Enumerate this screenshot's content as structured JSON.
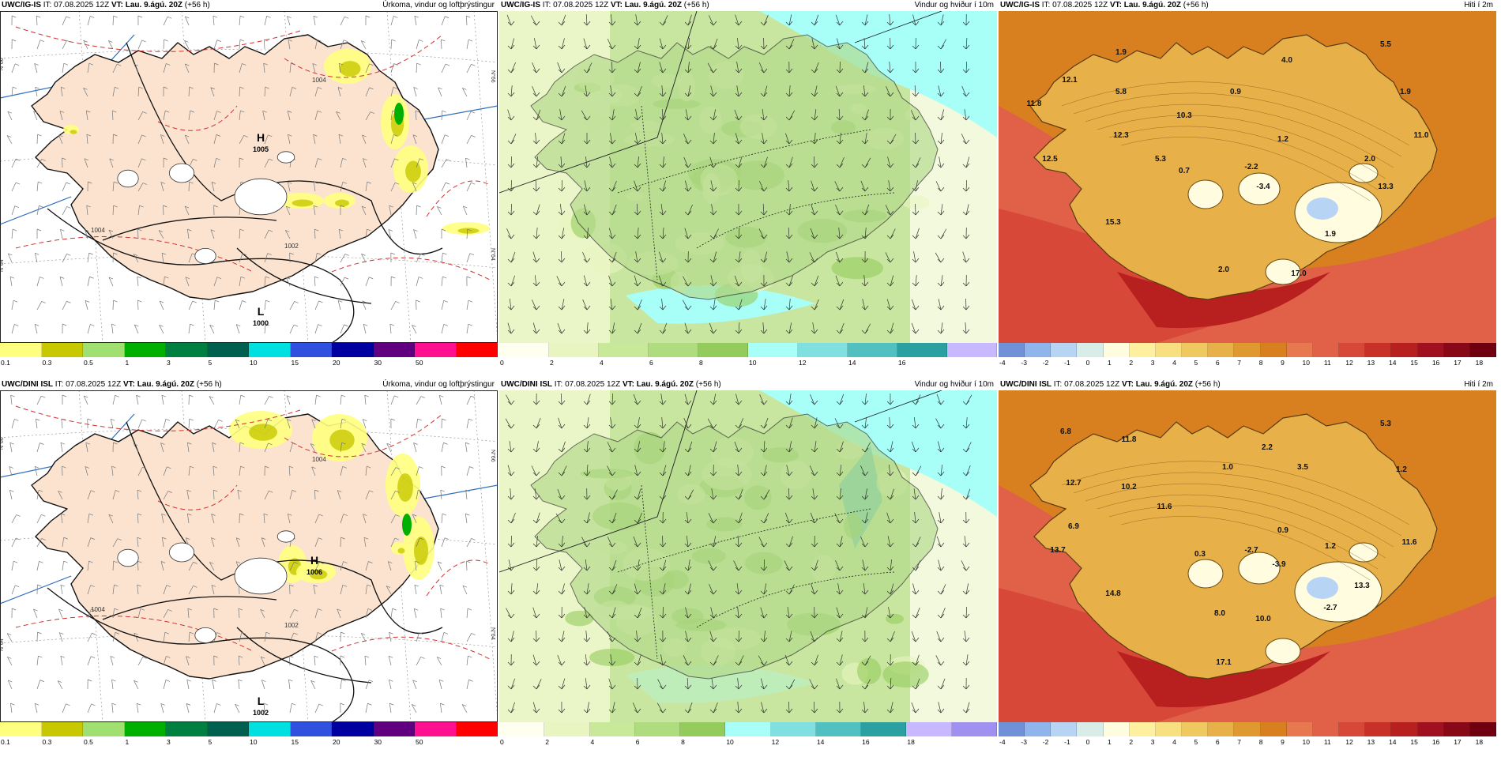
{
  "panels": [
    {
      "model": "UWC/IG-IS",
      "it_label": "IT:",
      "it": "07.08.2025 12Z",
      "vt_label": "VT:",
      "vt": "Lau. 9.ágú. 20Z",
      "lead": "(+56 h)",
      "title": "Úrkoma, vindur og loftþrýstingur",
      "type": "precip",
      "pressure_centers": [
        {
          "letter": "H",
          "value": "1005"
        },
        {
          "letter": "L",
          "value": "1000"
        }
      ],
      "isobar_labels": [
        "1004",
        "1004",
        "1002"
      ],
      "lat_labels": [
        "N°66",
        "N°66",
        "N°64",
        "N°64"
      ]
    },
    {
      "model": "UWC/IG-IS",
      "it_label": "IT:",
      "it": "07.08.2025 12Z",
      "vt_label": "VT:",
      "vt": "Lau. 9.ágú. 20Z",
      "lead": "(+56 h)",
      "title": "Vindur og hviður í 10m",
      "type": "wind"
    },
    {
      "model": "UWC/IG-IS",
      "it_label": "IT:",
      "it": "07.08.2025 12Z",
      "vt_label": "VT:",
      "vt": "Lau. 9.ágú. 20Z",
      "lead": "(+56 h)",
      "title": "Hiti í 2m",
      "type": "temp",
      "temps": [
        "5.5",
        "1.9",
        "4.0",
        "12.1",
        "5.8",
        "0.9",
        "1.9",
        "11.8",
        "10.3",
        "11.0",
        "12.3",
        "1.2",
        "12.5",
        "5.3",
        "0.7",
        "-2.2",
        "2.0",
        "-3.4",
        "13.3",
        "15.3",
        "1.9",
        "2.0",
        "17.0"
      ]
    },
    {
      "model": "UWC/DINI ISL",
      "it_label": "IT:",
      "it": "07.08.2025 12Z",
      "vt_label": "VT:",
      "vt": "Lau. 9.ágú. 20Z",
      "lead": "(+56 h)",
      "title": "Úrkoma, vindur og loftþrýstingur",
      "type": "precip",
      "pressure_centers": [
        {
          "letter": "H",
          "value": "1006"
        },
        {
          "letter": "L",
          "value": "1002"
        }
      ],
      "isobar_labels": [
        "1004",
        "1004",
        "1002"
      ],
      "lat_labels": [
        "N°66",
        "N°66",
        "N°64",
        "N°64"
      ]
    },
    {
      "model": "UWC/DINI ISL",
      "it_label": "IT:",
      "it": "07.08.2025 12Z",
      "vt_label": "VT:",
      "vt": "Lau. 9.ágú. 20Z",
      "lead": "(+56 h)",
      "title": "Vindur og hviður í 10m",
      "type": "wind"
    },
    {
      "model": "UWC/DINI ISL",
      "it_label": "IT:",
      "it": "07.08.2025 12Z",
      "vt_label": "VT:",
      "vt": "Lau. 9.ágú. 20Z",
      "lead": "(+56 h)",
      "title": "Hiti í 2m",
      "type": "temp",
      "temps": [
        "5.3",
        "6.8",
        "11.8",
        "2.2",
        "1.0",
        "3.5",
        "1.2",
        "12.7",
        "10.2",
        "11.6",
        "0.9",
        "6.9",
        "13.7",
        "0.3",
        "-2.7",
        "1.2",
        "11.6",
        "-3.9",
        "13.3",
        "14.8",
        "-2.7",
        "8.0",
        "10.0",
        "17.1"
      ]
    }
  ],
  "colorbars": {
    "precip": {
      "colors": [
        "#ffff7f",
        "#c8c800",
        "#a0e070",
        "#00b000",
        "#008040",
        "#006050",
        "#00e0e0",
        "#3050e0",
        "#0000a0",
        "#600080",
        "#ff1090",
        "#ff0000"
      ],
      "ticks": [
        "0.1",
        "0.3",
        "0.5",
        "1",
        "3",
        "5",
        "10",
        "15",
        "20",
        "30",
        "50",
        ""
      ]
    },
    "wind_top": {
      "colors": [
        "#fffff0",
        "#e8f5c0",
        "#c8e89a",
        "#aedc7e",
        "#94cc5c",
        "#a8fff8",
        "#80e0e0",
        "#50c0c0",
        "#2aa0a0",
        "#c8b8ff"
      ],
      "ticks": [
        "0",
        "2",
        "4",
        "6",
        "8",
        "10",
        "12",
        "14",
        "16",
        ""
      ]
    },
    "wind_bottom": {
      "colors": [
        "#fffff0",
        "#e8f5c0",
        "#c8e89a",
        "#aedc7e",
        "#94cc5c",
        "#a8fff8",
        "#80e0e0",
        "#50c0c0",
        "#2aa0a0",
        "#c8b8ff",
        "#a090f0"
      ],
      "ticks": [
        "0",
        "2",
        "4",
        "6",
        "8",
        "10",
        "12",
        "14",
        "16",
        "18",
        ""
      ]
    },
    "temp": {
      "colors": [
        "#7090d8",
        "#90b4ec",
        "#b8d4f4",
        "#d8ece8",
        "#fffce0",
        "#fff0a0",
        "#f8e080",
        "#f0c860",
        "#e8b048",
        "#e09830",
        "#d88020",
        "#e87850",
        "#e06048",
        "#d84838",
        "#c83028",
        "#b82020",
        "#a01020",
        "#880818",
        "#700010"
      ],
      "ticks": [
        "-4",
        "-3",
        "-2",
        "-1",
        "0",
        "1",
        "2",
        "3",
        "4",
        "5",
        "6",
        "7",
        "8",
        "9",
        "10",
        "11",
        "12",
        "13",
        "14",
        "15",
        "16",
        "17",
        "18"
      ]
    }
  }
}
